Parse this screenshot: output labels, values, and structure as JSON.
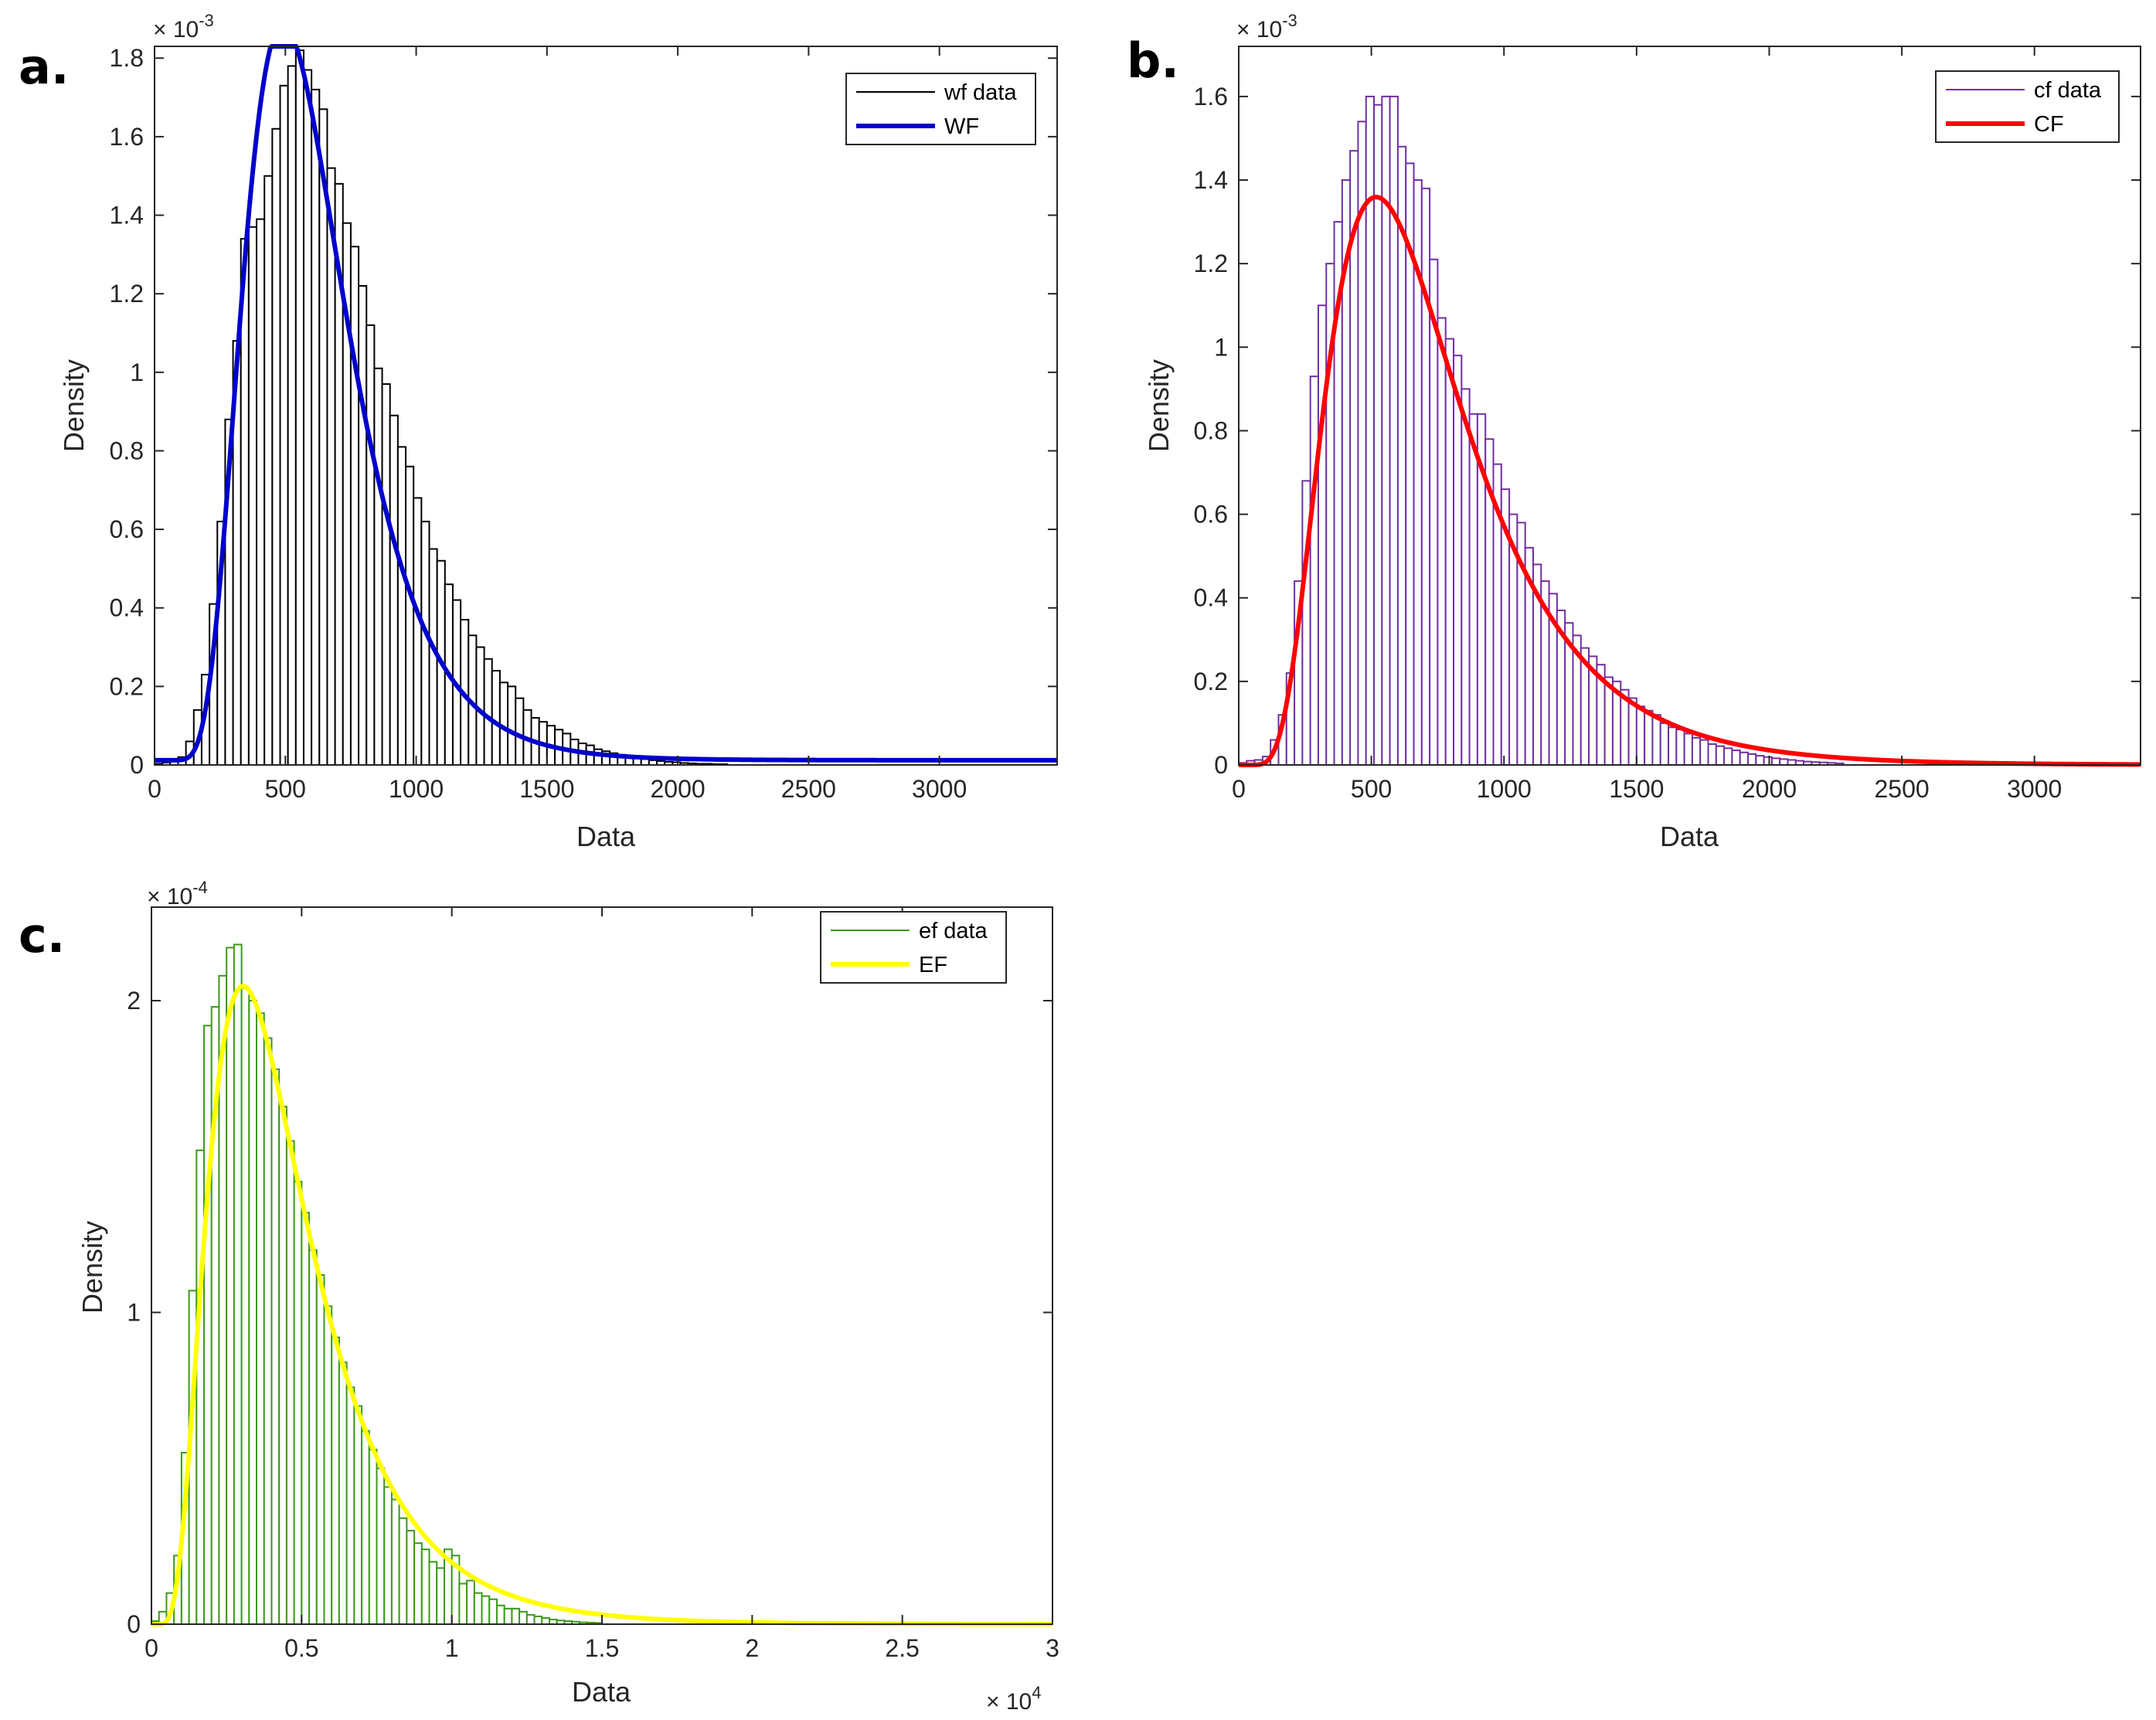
{
  "figure": {
    "panels": [
      {
        "letter": "a.",
        "multiplier_base": "× 10",
        "multiplier_exp": "-3",
        "xlabel": "Data",
        "ylabel": "Density",
        "legend": [
          {
            "label": "wf data"
          },
          {
            "label": "WF"
          }
        ]
      },
      {
        "letter": "b.",
        "multiplier_base": "× 10",
        "multiplier_exp": "-3",
        "xlabel": "Data",
        "ylabel": "Density",
        "legend": [
          {
            "label": "cf data"
          },
          {
            "label": "CF"
          }
        ]
      },
      {
        "letter": "c.",
        "multiplier_base": "× 10",
        "multiplier_exp": "-4",
        "xlabel": "Data",
        "ylabel": "Density",
        "x_multiplier_base": "× 10",
        "x_multiplier_exp": "4",
        "legend": [
          {
            "label": "ef data"
          },
          {
            "label": "EF"
          }
        ]
      }
    ]
  },
  "chart_data": [
    {
      "type": "histogram",
      "panel": "a.",
      "title": "",
      "xlabel": "Data",
      "ylabel": "Density",
      "y_multiplier": "x 10^-3",
      "xlim": [
        0,
        3450
      ],
      "ylim": [
        0,
        1.83
      ],
      "xticks": [
        0,
        500,
        1000,
        1500,
        2000,
        2500,
        3000
      ],
      "xtick_labels": [
        "0",
        "500",
        "1000",
        "1500",
        "2000",
        "2500",
        "3000"
      ],
      "yticks": [
        0,
        0.2,
        0.4,
        0.6,
        0.8,
        1.0,
        1.2,
        1.4,
        1.6,
        1.8
      ],
      "ytick_labels": [
        "0",
        "0.2",
        "0.4",
        "0.6",
        "0.8",
        "1",
        "1.2",
        "1.4",
        "1.6",
        "1.8"
      ],
      "hist": {
        "name": "wf data",
        "color": "#000000",
        "bin_start": 0,
        "bin_width": 30,
        "values": [
          0.003,
          0.006,
          0.01,
          0.02,
          0.06,
          0.14,
          0.23,
          0.41,
          0.62,
          0.88,
          1.08,
          1.34,
          1.37,
          1.39,
          1.5,
          1.62,
          1.73,
          1.78,
          1.82,
          1.77,
          1.72,
          1.67,
          1.52,
          1.48,
          1.38,
          1.32,
          1.22,
          1.12,
          1.01,
          0.97,
          0.89,
          0.81,
          0.76,
          0.68,
          0.62,
          0.55,
          0.52,
          0.46,
          0.42,
          0.37,
          0.33,
          0.3,
          0.27,
          0.24,
          0.21,
          0.2,
          0.17,
          0.14,
          0.12,
          0.11,
          0.1,
          0.09,
          0.08,
          0.065,
          0.055,
          0.05,
          0.04,
          0.035,
          0.03,
          0.026,
          0.022,
          0.018,
          0.015,
          0.012,
          0.01,
          0.008,
          0.007,
          0.005,
          0.004,
          0.003,
          0.003,
          0.002,
          0.002
        ]
      },
      "fit": {
        "name": "WF",
        "color": "#0000cc",
        "dist": "lognormal",
        "mu": 6.356,
        "sigma": 0.4,
        "scale": 1.0,
        "y_offset": 0.012
      },
      "legend": [
        "wf data",
        "WF"
      ],
      "legend_position": "top-right"
    },
    {
      "type": "histogram",
      "panel": "b.",
      "title": "",
      "xlabel": "Data",
      "ylabel": "Density",
      "y_multiplier": "x 10^-3",
      "xlim": [
        0,
        3400
      ],
      "ylim": [
        0,
        1.72
      ],
      "xticks": [
        0,
        500,
        1000,
        1500,
        2000,
        2500,
        3000
      ],
      "xtick_labels": [
        "0",
        "500",
        "1000",
        "1500",
        "2000",
        "2500",
        "3000"
      ],
      "yticks": [
        0,
        0.2,
        0.4,
        0.6,
        0.8,
        1.0,
        1.2,
        1.4,
        1.6
      ],
      "ytick_labels": [
        "0",
        "0.2",
        "0.4",
        "0.6",
        "0.8",
        "1",
        "1.2",
        "1.4",
        "1.6"
      ],
      "hist": {
        "name": "cf data",
        "color": "#7030a0",
        "bin_start": 0,
        "bin_width": 30,
        "values": [
          0.005,
          0.01,
          0.012,
          0.02,
          0.06,
          0.12,
          0.22,
          0.44,
          0.68,
          0.93,
          1.1,
          1.2,
          1.3,
          1.4,
          1.47,
          1.54,
          1.6,
          1.58,
          1.6,
          1.6,
          1.48,
          1.44,
          1.4,
          1.38,
          1.21,
          1.07,
          1.02,
          0.98,
          0.9,
          0.84,
          0.84,
          0.78,
          0.72,
          0.66,
          0.6,
          0.58,
          0.52,
          0.48,
          0.44,
          0.41,
          0.37,
          0.34,
          0.31,
          0.28,
          0.26,
          0.24,
          0.21,
          0.2,
          0.18,
          0.16,
          0.14,
          0.13,
          0.12,
          0.1,
          0.09,
          0.085,
          0.075,
          0.065,
          0.06,
          0.05,
          0.045,
          0.04,
          0.035,
          0.03,
          0.026,
          0.022,
          0.019,
          0.016,
          0.014,
          0.012,
          0.01,
          0.008,
          0.007,
          0.006,
          0.005,
          0.004
        ]
      },
      "fit": {
        "name": "CF",
        "color": "#ff0000",
        "dist": "lognormal",
        "mu": 6.5,
        "sigma": 0.5,
        "scale": 1.0,
        "y_offset": 0.0
      },
      "legend": [
        "cf data",
        "CF"
      ],
      "legend_position": "top-right"
    },
    {
      "type": "histogram",
      "panel": "c.",
      "title": "",
      "xlabel": "Data",
      "ylabel": "Density",
      "y_multiplier": "x 10^-4",
      "x_multiplier": "x 10^4",
      "xlim": [
        0,
        3.0
      ],
      "ylim": [
        0,
        2.3
      ],
      "xticks": [
        0,
        0.5,
        1.0,
        1.5,
        2.0,
        2.5,
        3.0
      ],
      "xtick_labels": [
        "0",
        "0.5",
        "1",
        "1.5",
        "2",
        "2.5",
        "3"
      ],
      "yticks": [
        0,
        1,
        2
      ],
      "ytick_labels": [
        "0",
        "1",
        "2"
      ],
      "hist": {
        "name": "ef data",
        "color": "#3a9a1a",
        "bin_start": 0,
        "bin_width": 0.025,
        "values": [
          0.01,
          0.04,
          0.1,
          0.22,
          0.55,
          1.07,
          1.52,
          1.92,
          1.98,
          2.08,
          2.17,
          2.18,
          2.04,
          2.0,
          1.96,
          1.88,
          1.78,
          1.66,
          1.55,
          1.42,
          1.32,
          1.2,
          1.12,
          1.02,
          0.92,
          0.84,
          0.76,
          0.7,
          0.62,
          0.56,
          0.5,
          0.44,
          0.4,
          0.34,
          0.3,
          0.26,
          0.24,
          0.2,
          0.18,
          0.24,
          0.22,
          0.13,
          0.14,
          0.1,
          0.09,
          0.08,
          0.06,
          0.05,
          0.05,
          0.04,
          0.03,
          0.025,
          0.02,
          0.015,
          0.012,
          0.01,
          0.008,
          0.006,
          0.005,
          0.004
        ]
      },
      "fit": {
        "name": "EF",
        "color": "#ffff00",
        "dist": "lognormal",
        "mu": -0.886,
        "sigma": 0.55,
        "scale": 1.0,
        "y_offset": 0.0
      },
      "legend": [
        "ef data",
        "EF"
      ],
      "legend_position": "top-right"
    }
  ]
}
